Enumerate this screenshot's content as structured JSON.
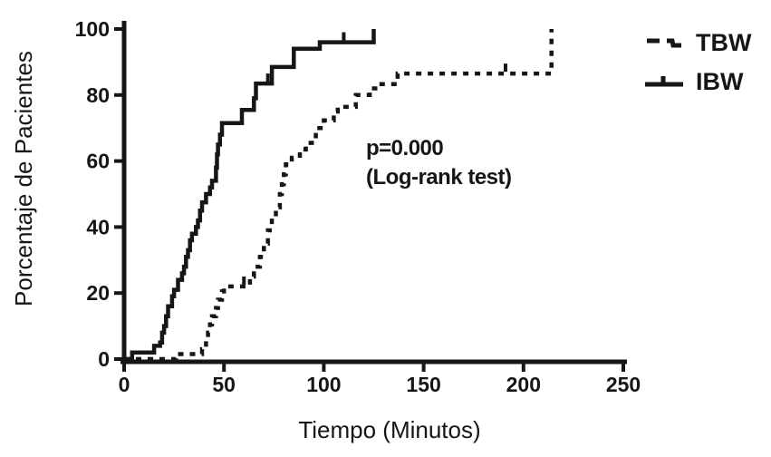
{
  "figure": {
    "background": "#ffffff",
    "ink_color": "#161616"
  },
  "chart_data": {
    "type": "line",
    "subtype": "kaplan-meier-step-curve",
    "title": "",
    "xlabel": "Tiempo (Minutos)",
    "ylabel": "Porcentaje de Pacientes",
    "xlim": [
      0,
      250
    ],
    "ylim": [
      0,
      100
    ],
    "x_ticks": [
      0,
      50,
      100,
      150,
      200,
      250
    ],
    "y_ticks": [
      0,
      20,
      40,
      60,
      80,
      100
    ],
    "grid": false,
    "legend_position": "top-right",
    "annotation": {
      "line1": "p=0.000",
      "line2": "(Log-rank test)"
    },
    "series": [
      {
        "name": "TBW",
        "style": "dashed",
        "color": "#161616",
        "points": [
          [
            0,
            0
          ],
          [
            26,
            1.5
          ],
          [
            39,
            3
          ],
          [
            41,
            5.5
          ],
          [
            42,
            8
          ],
          [
            43,
            10.5
          ],
          [
            44,
            13
          ],
          [
            46,
            15.5
          ],
          [
            47,
            18
          ],
          [
            49,
            20.5
          ],
          [
            50,
            22
          ],
          [
            63,
            25
          ],
          [
            65,
            28
          ],
          [
            68,
            31
          ],
          [
            70,
            35
          ],
          [
            72,
            39
          ],
          [
            74,
            43
          ],
          [
            76,
            46
          ],
          [
            78,
            50
          ],
          [
            79,
            53
          ],
          [
            80,
            56
          ],
          [
            81,
            59
          ],
          [
            84,
            61
          ],
          [
            88,
            63.5
          ],
          [
            91,
            65.5
          ],
          [
            94,
            67.5
          ],
          [
            96,
            70
          ],
          [
            100,
            72.3
          ],
          [
            105,
            75
          ],
          [
            107,
            76.4
          ],
          [
            116,
            80
          ],
          [
            123,
            82
          ],
          [
            127,
            83.3
          ],
          [
            137,
            86.5
          ],
          [
            214,
            100
          ]
        ],
        "censor_marks": [
          [
            60,
            22
          ],
          [
            191,
            86.5
          ]
        ]
      },
      {
        "name": "IBW",
        "style": "solid",
        "color": "#161616",
        "points": [
          [
            0,
            0
          ],
          [
            4,
            2
          ],
          [
            15,
            4
          ],
          [
            18,
            5
          ],
          [
            19,
            8
          ],
          [
            20,
            10
          ],
          [
            21,
            13
          ],
          [
            22,
            16
          ],
          [
            24,
            19
          ],
          [
            25,
            21
          ],
          [
            27,
            24
          ],
          [
            29,
            26
          ],
          [
            30,
            28
          ],
          [
            31,
            31
          ],
          [
            32,
            33
          ],
          [
            33,
            36
          ],
          [
            34,
            38
          ],
          [
            36,
            40
          ],
          [
            37,
            42
          ],
          [
            38,
            45
          ],
          [
            39,
            47.5
          ],
          [
            41,
            50
          ],
          [
            43,
            52
          ],
          [
            44,
            54
          ],
          [
            46,
            58
          ],
          [
            46.5,
            62
          ],
          [
            47,
            65
          ],
          [
            48,
            68
          ],
          [
            49,
            71.5
          ],
          [
            59,
            75.5
          ],
          [
            65,
            79
          ],
          [
            66,
            83.5
          ],
          [
            74,
            88.5
          ],
          [
            85,
            94
          ],
          [
            98,
            96
          ],
          [
            125,
            100
          ]
        ],
        "censor_marks": [
          [
            72,
            83.5
          ],
          [
            110,
            96
          ]
        ]
      }
    ]
  }
}
